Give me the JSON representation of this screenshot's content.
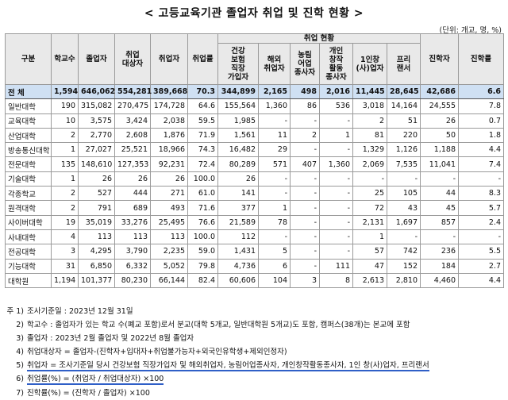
{
  "title": "< 고등교육기관 졸업자 취업 및 진학 현황 >",
  "unit": "(단위: 개교, 명, %)",
  "header": {
    "category": "구분",
    "schools": "학교수",
    "graduates": "졸업자",
    "emp_target": "취업\n대상자",
    "employed": "취업자",
    "emp_rate": "취업률",
    "emp_status": "취업 현황",
    "health_ins": "건강\n보험\n직장\n가입자",
    "overseas": "해외\n취업자",
    "agri": "농림\n어업\n종사자",
    "creative": "개인\n창작\n활동\n종사자",
    "one_person": "1인창\n(사)업자",
    "freelancer": "프리\n랜서",
    "advanced": "진학자",
    "adv_rate": "진학률"
  },
  "rows": [
    {
      "name": "전  체",
      "schools": "1,594",
      "graduates": "646,062",
      "target": "554,281",
      "employed": "389,668",
      "rate": "70.3",
      "health": "344,899",
      "overseas": "2,165",
      "agri": "498",
      "creative": "2,016",
      "one": "11,445",
      "free": "28,645",
      "adv": "42,686",
      "advrate": "6.6"
    },
    {
      "name": "일반대학",
      "schools": "190",
      "graduates": "315,082",
      "target": "270,475",
      "employed": "174,728",
      "rate": "64.6",
      "health": "155,564",
      "overseas": "1,360",
      "agri": "86",
      "creative": "536",
      "one": "3,018",
      "free": "14,164",
      "adv": "24,555",
      "advrate": "7.8"
    },
    {
      "name": "교육대학",
      "schools": "10",
      "graduates": "3,575",
      "target": "3,424",
      "employed": "2,038",
      "rate": "59.5",
      "health": "1,985",
      "overseas": "-",
      "agri": "-",
      "creative": "-",
      "one": "2",
      "free": "51",
      "adv": "26",
      "advrate": "0.7"
    },
    {
      "name": "산업대학",
      "schools": "2",
      "graduates": "2,770",
      "target": "2,608",
      "employed": "1,876",
      "rate": "71.9",
      "health": "1,561",
      "overseas": "11",
      "agri": "2",
      "creative": "1",
      "one": "81",
      "free": "220",
      "adv": "50",
      "advrate": "1.8"
    },
    {
      "name": "방송통신대학",
      "schools": "1",
      "graduates": "27,027",
      "target": "25,521",
      "employed": "18,966",
      "rate": "74.3",
      "health": "16,482",
      "overseas": "29",
      "agri": "-",
      "creative": "-",
      "one": "1,329",
      "free": "1,126",
      "adv": "1,188",
      "advrate": "4.4"
    },
    {
      "name": "전문대학",
      "schools": "135",
      "graduates": "148,610",
      "target": "127,353",
      "employed": "92,231",
      "rate": "72.4",
      "health": "80,289",
      "overseas": "571",
      "agri": "407",
      "creative": "1,360",
      "one": "2,069",
      "free": "7,535",
      "adv": "11,041",
      "advrate": "7.4"
    },
    {
      "name": "기술대학",
      "schools": "1",
      "graduates": "26",
      "target": "26",
      "employed": "26",
      "rate": "100.0",
      "health": "26",
      "overseas": "-",
      "agri": "-",
      "creative": "-",
      "one": "-",
      "free": "-",
      "adv": "-",
      "advrate": "-"
    },
    {
      "name": "각종학교",
      "schools": "2",
      "graduates": "527",
      "target": "444",
      "employed": "271",
      "rate": "61.0",
      "health": "141",
      "overseas": "-",
      "agri": "-",
      "creative": "-",
      "one": "25",
      "free": "105",
      "adv": "44",
      "advrate": "8.3"
    },
    {
      "name": "원격대학",
      "schools": "2",
      "graduates": "791",
      "target": "689",
      "employed": "493",
      "rate": "71.6",
      "health": "377",
      "overseas": "1",
      "agri": "-",
      "creative": "-",
      "one": "72",
      "free": "43",
      "adv": "45",
      "advrate": "5.7"
    },
    {
      "name": "사이버대학",
      "schools": "19",
      "graduates": "35,019",
      "target": "33,276",
      "employed": "25,495",
      "rate": "76.6",
      "health": "21,589",
      "overseas": "78",
      "agri": "-",
      "creative": "-",
      "one": "2,131",
      "free": "1,697",
      "adv": "857",
      "advrate": "2.4"
    },
    {
      "name": "사내대학",
      "schools": "4",
      "graduates": "113",
      "target": "113",
      "employed": "113",
      "rate": "100.0",
      "health": "112",
      "overseas": "-",
      "agri": "-",
      "creative": "-",
      "one": "1",
      "free": "-",
      "adv": "-",
      "advrate": "-"
    },
    {
      "name": "전공대학",
      "schools": "3",
      "graduates": "4,295",
      "target": "3,790",
      "employed": "2,235",
      "rate": "59.0",
      "health": "1,431",
      "overseas": "5",
      "agri": "-",
      "creative": "-",
      "one": "57",
      "free": "742",
      "adv": "236",
      "advrate": "5.5"
    },
    {
      "name": "기능대학",
      "schools": "31",
      "graduates": "6,850",
      "target": "6,332",
      "employed": "5,052",
      "rate": "79.8",
      "health": "4,736",
      "overseas": "6",
      "agri": "-",
      "creative": "111",
      "one": "47",
      "free": "152",
      "adv": "184",
      "advrate": "2.7"
    },
    {
      "name": "대학원",
      "schools": "1,194",
      "graduates": "101,377",
      "target": "80,230",
      "employed": "66,144",
      "rate": "82.4",
      "health": "60,606",
      "overseas": "104",
      "agri": "3",
      "creative": "8",
      "one": "2,613",
      "free": "2,810",
      "adv": "4,460",
      "advrate": "4.4"
    }
  ],
  "notes": [
    {
      "num": "주 1)",
      "text": "조사기준일 : 2023년 12월 31일"
    },
    {
      "num": "2)",
      "text": "학교수 : 졸업자가 있는 학교 수(폐교 포함)로서 분교(대학 5개교, 일반대학원 5개교)도 포함, 캠퍼스(38개)는 본교에 포함"
    },
    {
      "num": "3)",
      "text": "졸업자 : 2023년 2월 졸업자 및 2022년 8월 졸업자"
    },
    {
      "num": "4)",
      "text": "취업대상자 = 졸업자-(진학자+입대자+취업불가능자+외국인유학생+제외인정자)"
    },
    {
      "num": "5)",
      "text": "취업자 = 조사기준일 당시 건강보험 직장가입자 및 해외취업자, 농림어업종사자, 개인창작활동종사자, 1인 창(사)업자, 프리랜서"
    },
    {
      "num": "6)",
      "text": "취업률(%) = (취업자 / 취업대상자) ×100"
    },
    {
      "num": "7)",
      "text": "진학률(%) = (진학자 / 졸업자) ×100"
    }
  ]
}
